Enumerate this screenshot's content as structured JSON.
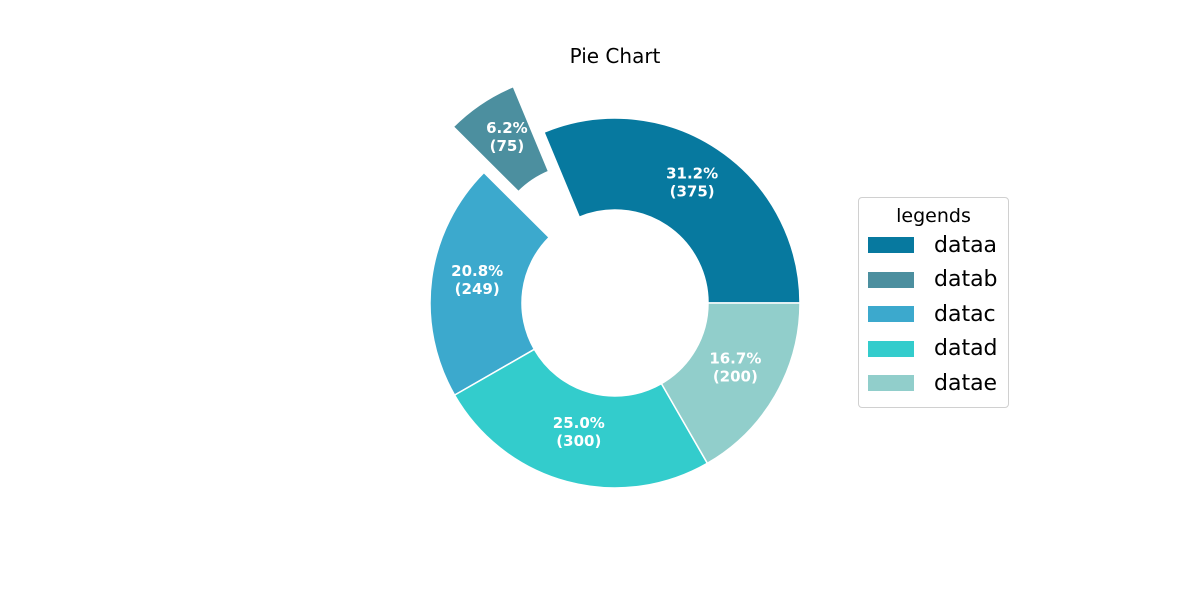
{
  "chart_data": {
    "type": "pie",
    "title": "Pie Chart",
    "donut": true,
    "labels": [
      "dataa",
      "datab",
      "datac",
      "datad",
      "datae"
    ],
    "values": [
      375,
      75,
      249,
      300,
      200
    ],
    "percent_labels": [
      "31.2%",
      "6.2%",
      "20.8%",
      "25.0%",
      "16.7%"
    ],
    "value_labels": [
      "(375)",
      "(75)",
      "(249)",
      "(300)",
      "(200)"
    ],
    "colors": [
      "#07799f",
      "#4c8f9f",
      "#3ca9cd",
      "#33cccc",
      "#91cecb"
    ],
    "exploded": "datab",
    "start_angle_deg": 0,
    "direction": "counterclockwise",
    "legend": {
      "title": "legends",
      "placement": "right"
    }
  }
}
